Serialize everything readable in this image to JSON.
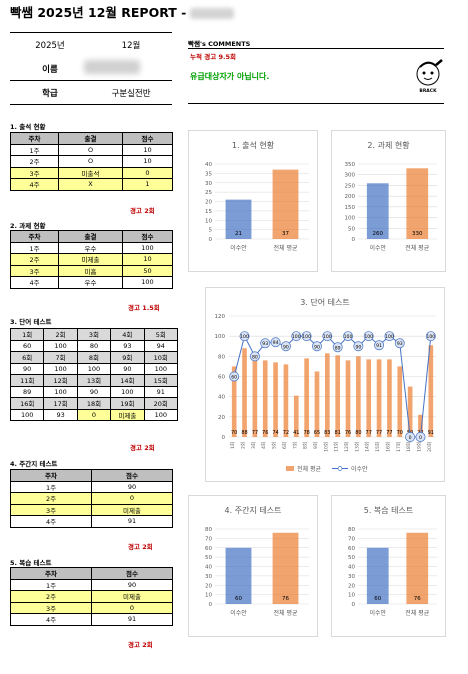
{
  "header": {
    "title": "빡쌤 2025년 12월 REPORT -"
  },
  "info": {
    "year": "2025년",
    "month": "12월",
    "name_label": "이름",
    "class_label": "학급",
    "class_value": "구분실전반"
  },
  "comments": {
    "title": "빡쌤's COMMENTS",
    "line1": "누적 경고 9.5회",
    "line2": "유급대상자가 아닙니다.",
    "logo_text": "BRACK"
  },
  "attendance": {
    "title": "1. 출석 현황",
    "headers": [
      "주차",
      "출결",
      "점수"
    ],
    "rows": [
      [
        "1주",
        "O",
        "10"
      ],
      [
        "2주",
        "O",
        "10"
      ],
      [
        "3주",
        "미출석",
        "0"
      ],
      [
        "4주",
        "X",
        "1"
      ]
    ],
    "warning": "경고 2회"
  },
  "homework": {
    "title": "2. 과제 현황",
    "headers": [
      "주차",
      "출결",
      "점수"
    ],
    "rows": [
      [
        "1주",
        "우수",
        "100"
      ],
      [
        "2주",
        "미제출",
        "10"
      ],
      [
        "3주",
        "미흡",
        "50"
      ],
      [
        "4주",
        "우수",
        "100"
      ]
    ],
    "warning": "경고 1.5회"
  },
  "word_test": {
    "title": "3. 단어 테스트",
    "grid": [
      [
        "1회",
        "2회",
        "3회",
        "4회",
        "5회"
      ],
      [
        "60",
        "100",
        "80",
        "93",
        "94"
      ],
      [
        "6회",
        "7회",
        "8회",
        "9회",
        "10회"
      ],
      [
        "90",
        "100",
        "100",
        "90",
        "100"
      ],
      [
        "11회",
        "12회",
        "13회",
        "14회",
        "15회"
      ],
      [
        "89",
        "100",
        "90",
        "100",
        "91"
      ],
      [
        "16회",
        "17회",
        "18회",
        "19회",
        "20회"
      ],
      [
        "100",
        "93",
        "0",
        "미제출",
        "100"
      ]
    ],
    "warning": "경고 2회"
  },
  "weekly_test": {
    "title": "4. 주간지 테스트",
    "headers": [
      "주차",
      "점수"
    ],
    "rows": [
      [
        "1주",
        "90"
      ],
      [
        "2주",
        "0"
      ],
      [
        "3주",
        "미제출"
      ],
      [
        "4주",
        "91"
      ]
    ],
    "warning": "경고 2회"
  },
  "review_test": {
    "title": "5. 복습 테스트",
    "headers": [
      "주차",
      "점수"
    ],
    "rows": [
      [
        "1주",
        "90"
      ],
      [
        "2주",
        "미제출"
      ],
      [
        "3주",
        "0"
      ],
      [
        "4주",
        "91"
      ]
    ],
    "warning": "경고 2회"
  },
  "colors": {
    "student": "#4472c4",
    "average": "#ed7d31",
    "warning": "#c00000",
    "highlight": "#ffff99"
  },
  "chart_data": [
    {
      "type": "bar",
      "title": "1. 출석 현황",
      "categories": [
        "이수안",
        "전체 평균"
      ],
      "values": [
        21,
        37
      ],
      "ylim": [
        0,
        40
      ],
      "yticks": [
        0,
        5,
        10,
        15,
        20,
        25,
        30,
        35,
        40
      ]
    },
    {
      "type": "bar",
      "title": "2. 과제 현황",
      "categories": [
        "이수안",
        "전체 평균"
      ],
      "values": [
        260,
        330
      ],
      "ylim": [
        0,
        350
      ],
      "yticks": [
        0,
        50,
        100,
        150,
        200,
        250,
        300,
        350
      ]
    },
    {
      "type": "bar+line",
      "title": "3. 단어 테스트",
      "categories": [
        "1회",
        "2회",
        "3회",
        "4회",
        "5회",
        "6회",
        "7회",
        "8회",
        "9회",
        "10회",
        "11회",
        "12회",
        "13회",
        "14회",
        "15회",
        "16회",
        "17회",
        "18회",
        "19회",
        "20회"
      ],
      "series": [
        {
          "name": "전체 평균",
          "type": "bar",
          "values": [
            70,
            88,
            77,
            76,
            74,
            72,
            41,
            78,
            65,
            83,
            81,
            76,
            80,
            77,
            77,
            77,
            70,
            50,
            22,
            91
          ]
        },
        {
          "name": "이수안",
          "type": "line",
          "values": [
            60,
            100,
            80,
            93,
            94,
            90,
            100,
            100,
            90,
            100,
            89,
            100,
            90,
            100,
            91,
            100,
            93,
            0,
            0,
            100
          ]
        }
      ],
      "ylim": [
        0,
        120
      ],
      "yticks": [
        0,
        20,
        40,
        60,
        80,
        100,
        120
      ],
      "legend": "bottom"
    },
    {
      "type": "bar",
      "title": "4. 주간지 테스트",
      "categories": [
        "이수안",
        "전체 평균"
      ],
      "values": [
        60,
        76
      ],
      "ylim": [
        0,
        80
      ],
      "yticks": [
        0,
        10,
        20,
        30,
        40,
        50,
        60,
        70,
        80
      ]
    },
    {
      "type": "bar",
      "title": "5. 복습 테스트",
      "categories": [
        "이수안",
        "전체 평균"
      ],
      "values": [
        60,
        76
      ],
      "ylim": [
        0,
        80
      ],
      "yticks": [
        0,
        10,
        20,
        30,
        40,
        50,
        60,
        70,
        80
      ]
    }
  ]
}
